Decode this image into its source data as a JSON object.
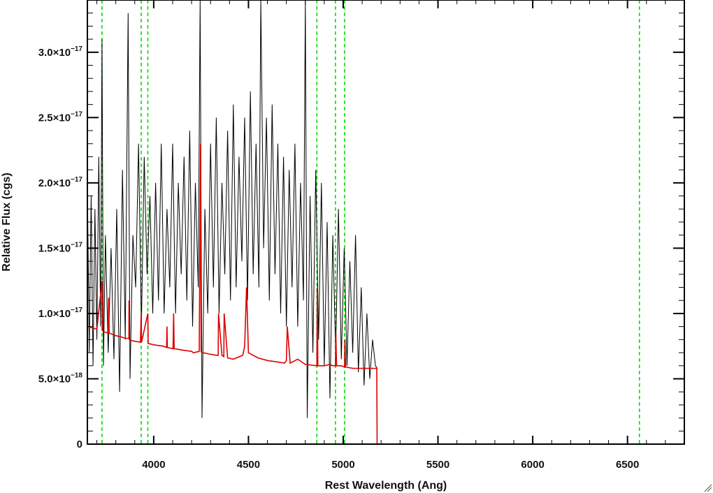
{
  "chart_data": {
    "type": "line",
    "title": "",
    "xlabel": "Rest Wavelength (Ang)",
    "ylabel": "Relative Flux (cgs)",
    "xlim": [
      3650,
      6800
    ],
    "ylim": [
      0,
      3.4e-17
    ],
    "grid": false,
    "legend": "none",
    "x_ticks": [
      {
        "value": 4000,
        "label": "4000"
      },
      {
        "value": 4500,
        "label": "4500"
      },
      {
        "value": 5000,
        "label": "5000"
      },
      {
        "value": 5500,
        "label": "5500"
      },
      {
        "value": 6000,
        "label": "6000"
      },
      {
        "value": 6500,
        "label": "6500"
      }
    ],
    "x_minor_step": 100,
    "y_ticks": [
      {
        "value": 0,
        "mantissa": "0",
        "exponent": ""
      },
      {
        "value": 5e-18,
        "mantissa": "5.0×10",
        "exponent": "−18"
      },
      {
        "value": 1e-17,
        "mantissa": "1.0×10",
        "exponent": "−17"
      },
      {
        "value": 1.5e-17,
        "mantissa": "1.5×10",
        "exponent": "−17"
      },
      {
        "value": 2e-17,
        "mantissa": "2.0×10",
        "exponent": "−17"
      },
      {
        "value": 2.5e-17,
        "mantissa": "2.5×10",
        "exponent": "−17"
      },
      {
        "value": 3e-17,
        "mantissa": "3.0×10",
        "exponent": "−17"
      }
    ],
    "y_minor_step": 1e-18,
    "vlines": [
      3727,
      3934,
      3969,
      4861,
      4959,
      5007,
      6563
    ],
    "vline_color": "#00dd00",
    "series": [
      {
        "color": "#000000",
        "x": [
          3650,
          3660,
          3670,
          3680,
          3690,
          3700,
          3710,
          3720,
          3727,
          3735,
          3745,
          3760,
          3775,
          3790,
          3805,
          3820,
          3835,
          3850,
          3865,
          3875,
          3890,
          3905,
          3920,
          3935,
          3950,
          3965,
          3980,
          3995,
          4010,
          4025,
          4040,
          4055,
          4070,
          4085,
          4100,
          4115,
          4130,
          4145,
          4160,
          4175,
          4190,
          4205,
          4220,
          4235,
          4245,
          4255,
          4270,
          4285,
          4300,
          4315,
          4330,
          4345,
          4360,
          4375,
          4390,
          4405,
          4420,
          4435,
          4450,
          4465,
          4480,
          4495,
          4510,
          4525,
          4540,
          4555,
          4565,
          4580,
          4595,
          4610,
          4625,
          4640,
          4655,
          4670,
          4685,
          4700,
          4715,
          4730,
          4745,
          4760,
          4775,
          4790,
          4800,
          4810,
          4825,
          4840,
          4855,
          4870,
          4885,
          4900,
          4915,
          4930,
          4945,
          4960,
          4975,
          4990,
          5005,
          5020,
          5035,
          5050,
          5065,
          5080,
          5095,
          5110,
          5125,
          5140,
          5155,
          5170,
          5180
        ],
        "y": [
          2e-17,
          7e-18,
          1.9e-17,
          6e-18,
          1.8e-17,
          8e-18,
          2.2e-17,
          9e-18,
          3.1e-17,
          6e-18,
          1.6e-17,
          7e-18,
          1.5e-17,
          6.5e-18,
          1.8e-17,
          4e-18,
          2.1e-17,
          8e-18,
          3.3e-17,
          5e-18,
          1.6e-17,
          1.2e-17,
          2.3e-17,
          9e-18,
          2.2e-17,
          1.3e-17,
          1.9e-17,
          1e-17,
          2e-17,
          1.1e-17,
          2.3e-17,
          1e-17,
          1.8e-17,
          1.2e-17,
          2.3e-17,
          1e-17,
          2e-17,
          1.3e-17,
          2.2e-17,
          1.1e-17,
          2.4e-17,
          9e-18,
          2e-17,
          1.2e-17,
          3.4e-17,
          2e-18,
          1.8e-17,
          1e-17,
          2.3e-17,
          1.2e-17,
          2.5e-17,
          1e-17,
          2e-17,
          1.3e-17,
          2.4e-17,
          1.1e-17,
          2.6e-17,
          1.2e-17,
          2.2e-17,
          1.4e-17,
          2.5e-17,
          1.1e-17,
          2.7e-17,
          1.3e-17,
          2.3e-17,
          1.2e-17,
          3.4e-17,
          1.5e-17,
          2.5e-17,
          1.1e-17,
          2.6e-17,
          1.3e-17,
          2.3e-17,
          1e-17,
          2.2e-17,
          9e-18,
          2.1e-17,
          1.2e-17,
          2.3e-17,
          9e-18,
          2e-17,
          1.1e-17,
          3.4e-17,
          2e-18,
          1.9e-17,
          7e-18,
          2.1e-17,
          8e-18,
          2e-17,
          6e-18,
          1.7e-17,
          3.5e-18,
          1.6e-17,
          7e-18,
          1.8e-17,
          6.5e-18,
          1.5e-17,
          6e-18,
          1.4e-17,
          7e-18,
          1.6e-17,
          5.5e-18,
          1.2e-17,
          4.5e-18,
          1e-17,
          5e-18,
          8e-18,
          6e-18,
          5.8e-18
        ]
      },
      {
        "color": "#dd0000",
        "x": [
          3650,
          3700,
          3727,
          3729,
          3735,
          3760,
          3762,
          3765,
          3800,
          3830,
          3850,
          3869,
          3870,
          3871,
          3890,
          3930,
          3934,
          3936,
          3969,
          3971,
          3975,
          4000,
          4050,
          4068,
          4070,
          4072,
          4102,
          4105,
          4108,
          4150,
          4200,
          4210,
          4240,
          4247,
          4250,
          4254,
          4260,
          4290,
          4330,
          4340,
          4342,
          4360,
          4370,
          4372,
          4390,
          4420,
          4470,
          4480,
          4490,
          4500,
          4550,
          4600,
          4650,
          4690,
          4700,
          4705,
          4720,
          4760,
          4800,
          4861,
          4863,
          4866,
          4900,
          4930,
          4945,
          4959,
          4961,
          4965,
          4990,
          5007,
          5009,
          5013,
          5050,
          5100,
          5150,
          5175,
          5177,
          5179,
          5181,
          5300,
          5500,
          6000,
          6500,
          6800
        ],
        "y": [
          9e-18,
          8.8e-18,
          1.25e-17,
          8.7e-18,
          8.6e-18,
          8.5e-18,
          1.12e-17,
          8.5e-18,
          8.3e-18,
          8.2e-18,
          8.1e-18,
          8.1e-18,
          1.1e-17,
          8e-18,
          7.9e-18,
          7.8e-18,
          1e-17,
          7.8e-18,
          1e-17,
          7.7e-18,
          7.7e-18,
          7.6e-18,
          7.5e-18,
          7.4e-18,
          9e-18,
          7.4e-18,
          7.3e-18,
          1e-17,
          7.3e-18,
          7.2e-18,
          7.1e-18,
          7e-18,
          7.1e-18,
          2.3e-17,
          7.1e-18,
          7e-18,
          7e-18,
          6.9e-18,
          6.8e-18,
          6.8e-18,
          1e-17,
          6.8e-18,
          6.7e-18,
          1e-17,
          6.6e-18,
          6.5e-18,
          6.8e-18,
          7.5e-18,
          1.2e-17,
          7e-18,
          6.6e-18,
          6.4e-18,
          6.3e-18,
          6.2e-18,
          6.4e-18,
          9e-18,
          6.2e-18,
          6.5e-18,
          6.1e-18,
          6e-18,
          1.2e-17,
          6e-18,
          6e-18,
          6.1e-18,
          6e-18,
          6e-18,
          8.5e-18,
          6e-18,
          6e-18,
          5.9e-18,
          8e-18,
          5.9e-18,
          5.8e-18,
          5.8e-18,
          5.8e-18,
          5.8e-18,
          5.8e-18,
          0,
          0,
          0,
          0,
          0,
          0,
          0
        ]
      }
    ]
  }
}
